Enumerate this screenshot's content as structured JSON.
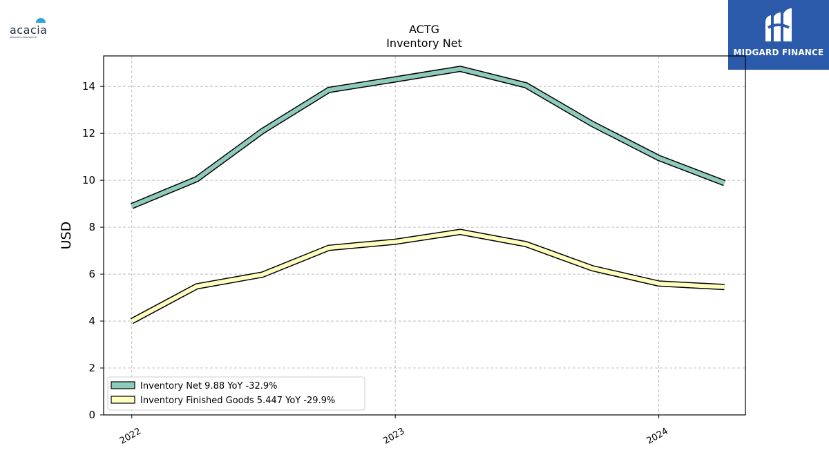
{
  "logos": {
    "left_name": "acacia",
    "left_tagline": "RESEARCH CORPORATION",
    "right_name": "MIDGARD FINANCE",
    "right_colors": {
      "background": "#2b5aab",
      "text": "#ffffff"
    }
  },
  "chart_data": {
    "type": "line",
    "title": "ACTG",
    "subtitle": "Inventory Net",
    "xlabel": "",
    "ylabel": "USD",
    "ylim": [
      0,
      15.3
    ],
    "yticks": [
      0,
      2,
      4,
      6,
      8,
      10,
      12,
      14
    ],
    "xlim": [
      "2021-11-23",
      "2024-04-30"
    ],
    "xticks": [
      {
        "date": "2022-01-01",
        "label": "2022"
      },
      {
        "date": "2023-01-01",
        "label": "2023"
      },
      {
        "date": "2024-01-01",
        "label": "2024"
      }
    ],
    "x": [
      "2022-01-01",
      "2022-04-01",
      "2022-07-01",
      "2022-10-01",
      "2023-01-01",
      "2023-04-01",
      "2023-07-01",
      "2023-10-01",
      "2024-01-01",
      "2024-04-01"
    ],
    "grid": true,
    "legend_position": "lower-left",
    "series": [
      {
        "name": "Inventory Net",
        "legend_label": "Inventory Net  9.88 YoY -32.9%",
        "color": "#8ecbbd",
        "values": [
          8.9,
          10.05,
          12.1,
          13.85,
          14.3,
          14.75,
          14.05,
          12.4,
          10.95,
          9.88
        ]
      },
      {
        "name": "Inventory Finished Goods",
        "legend_label": "Inventory Finished Goods  5.447 YoY -29.9%",
        "color": "#ffffbf",
        "values": [
          4.0,
          5.48,
          5.98,
          7.12,
          7.38,
          7.8,
          7.28,
          6.25,
          5.6,
          5.45
        ]
      }
    ]
  }
}
